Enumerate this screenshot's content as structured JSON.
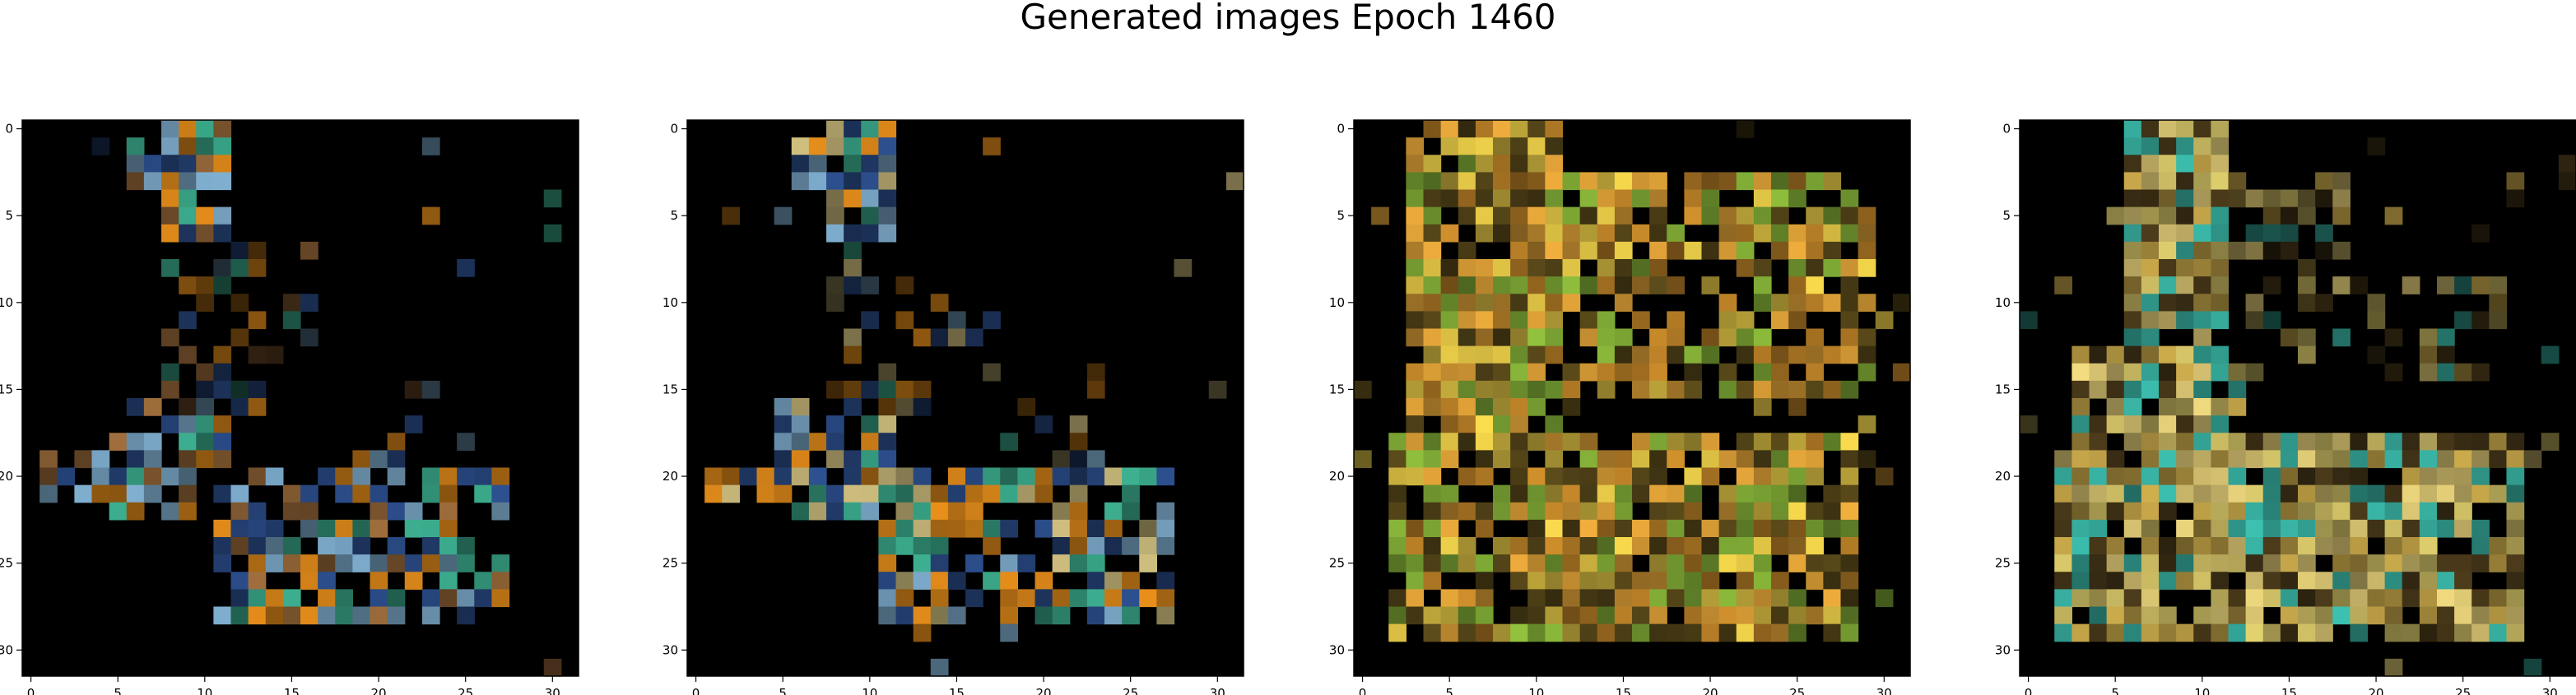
{
  "figure": {
    "title": "Generated images Epoch 1460"
  },
  "chart_data": [
    {
      "type": "heatmap",
      "title": "",
      "xlabel": "",
      "ylabel": "",
      "xlim": [
        -0.5,
        31.5
      ],
      "ylim": [
        31.5,
        -0.5
      ],
      "xticks": [
        0,
        5,
        10,
        15,
        20,
        25,
        30
      ],
      "yticks": [
        0,
        5,
        10,
        15,
        20,
        25,
        30
      ],
      "grid": false,
      "pixel_grid": [
        32,
        32
      ],
      "background": "#000000",
      "dominant_colors": [
        "#7ba8c8",
        "#2b4d8a",
        "#e08a1a",
        "#3aa88a",
        "#9a6a3a"
      ]
    },
    {
      "type": "heatmap",
      "title": "",
      "xlabel": "",
      "ylabel": "",
      "xlim": [
        -0.5,
        31.5
      ],
      "ylim": [
        31.5,
        -0.5
      ],
      "xticks": [
        0,
        5,
        10,
        15,
        20,
        25,
        30
      ],
      "yticks": [
        0,
        5,
        10,
        15,
        20,
        25,
        30
      ],
      "grid": false,
      "pixel_grid": [
        32,
        32
      ],
      "background": "#000000",
      "dominant_colors": [
        "#7ba8c8",
        "#2b4d8a",
        "#e08a1a",
        "#3aa88a",
        "#c8b87a"
      ]
    },
    {
      "type": "heatmap",
      "title": "",
      "xlabel": "",
      "ylabel": "",
      "xlim": [
        -0.5,
        31.5
      ],
      "ylim": [
        31.5,
        -0.5
      ],
      "xticks": [
        0,
        5,
        10,
        15,
        20,
        25,
        30
      ],
      "yticks": [
        0,
        5,
        10,
        15,
        20,
        25,
        30
      ],
      "grid": false,
      "pixel_grid": [
        32,
        32
      ],
      "background": "#000000",
      "dominant_colors": [
        "#f0d24a",
        "#e8a83a",
        "#c88a2a",
        "#5a4a1a",
        "#8ab83a"
      ]
    },
    {
      "type": "heatmap",
      "title": "",
      "xlabel": "",
      "ylabel": "",
      "xlim": [
        -0.5,
        31.5
      ],
      "ylim": [
        31.5,
        -0.5
      ],
      "xticks": [
        0,
        5,
        10,
        15,
        20,
        25,
        30
      ],
      "yticks": [
        0,
        5,
        10,
        15,
        20,
        25,
        30
      ],
      "grid": false,
      "pixel_grid": [
        32,
        32
      ],
      "background": "#000000",
      "dominant_colors": [
        "#e8d27a",
        "#d8c86a",
        "#c8a84a",
        "#4a3a1a",
        "#3ab8a8"
      ]
    }
  ]
}
